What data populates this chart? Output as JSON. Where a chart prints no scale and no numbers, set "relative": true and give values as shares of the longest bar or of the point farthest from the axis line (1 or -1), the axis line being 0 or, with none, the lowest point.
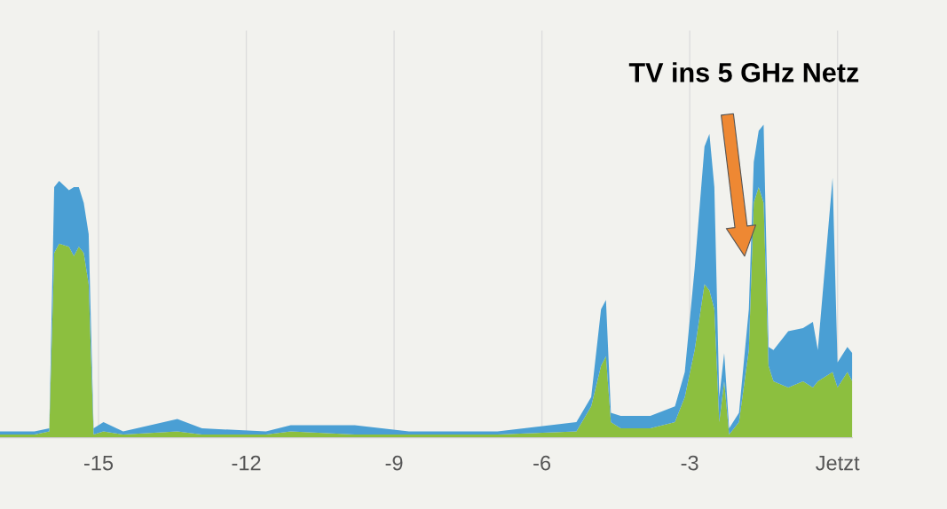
{
  "chart_data": {
    "type": "area",
    "stacked": true,
    "relative": true,
    "grid": "x",
    "legend": false,
    "x": [
      -17.0,
      -16.3,
      -16.0,
      -15.9,
      -15.8,
      -15.6,
      -15.5,
      -15.4,
      -15.3,
      -15.2,
      -15.1,
      -14.9,
      -14.5,
      -13.4,
      -12.9,
      -11.6,
      -11.1,
      -9.8,
      -8.7,
      -6.9,
      -5.3,
      -5.0,
      -4.8,
      -4.7,
      -4.6,
      -4.4,
      -3.8,
      -3.3,
      -3.1,
      -2.9,
      -2.7,
      -2.6,
      -2.5,
      -2.4,
      -2.3,
      -2.2,
      -2.0,
      -1.8,
      -1.7,
      -1.6,
      -1.5,
      -1.4,
      -1.3,
      -1.0,
      -0.7,
      -0.5,
      -0.4,
      -0.1,
      0.0,
      0.2,
      0.3
    ],
    "series": [
      {
        "color": "#8cbf3f",
        "values": [
          0.01,
          0.01,
          0.02,
          0.59,
          0.62,
          0.61,
          0.58,
          0.61,
          0.59,
          0.49,
          0.01,
          0.02,
          0.01,
          0.02,
          0.01,
          0.01,
          0.02,
          0.01,
          0.01,
          0.01,
          0.02,
          0.1,
          0.23,
          0.26,
          0.05,
          0.03,
          0.03,
          0.05,
          0.13,
          0.28,
          0.49,
          0.47,
          0.41,
          0.05,
          0.18,
          0.01,
          0.05,
          0.28,
          0.75,
          0.8,
          0.75,
          0.23,
          0.18,
          0.16,
          0.18,
          0.16,
          0.18,
          0.21,
          0.16,
          0.21,
          0.18
        ]
      },
      {
        "color": "#4a9fd4",
        "values": [
          0.01,
          0.01,
          0.01,
          0.21,
          0.2,
          0.18,
          0.22,
          0.19,
          0.16,
          0.16,
          0.02,
          0.03,
          0.01,
          0.04,
          0.02,
          0.01,
          0.02,
          0.03,
          0.01,
          0.01,
          0.03,
          0.03,
          0.18,
          0.18,
          0.03,
          0.04,
          0.04,
          0.05,
          0.08,
          0.26,
          0.44,
          0.5,
          0.39,
          0.08,
          0.09,
          0.02,
          0.03,
          0.13,
          0.13,
          0.18,
          0.25,
          0.06,
          0.1,
          0.18,
          0.17,
          0.21,
          0.1,
          0.62,
          0.08,
          0.08,
          0.09
        ]
      }
    ],
    "xlim": [
      -17.0,
      0.3
    ],
    "xticks": [
      -15,
      -12,
      -9,
      -6,
      -3,
      {
        "value": 0,
        "label": "Jetzt"
      }
    ],
    "annotations": [
      "TV ins 5 GHz Netz"
    ]
  }
}
